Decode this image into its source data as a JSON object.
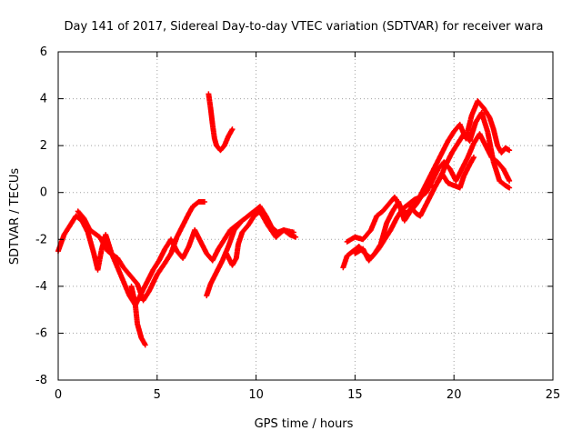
{
  "chart_data": {
    "type": "scatter",
    "title": "Day 141 of 2017, Sidereal Day-to-day VTEC variation (SDTVAR) for receiver wara",
    "xlabel": "GPS time / hours",
    "ylabel": "SDTVAR / TECUs",
    "xlim": [
      0,
      25
    ],
    "ylim": [
      -8,
      6
    ],
    "xticks": [
      0,
      5,
      10,
      15,
      20,
      25
    ],
    "yticks": [
      -8,
      -6,
      -4,
      -2,
      0,
      2,
      4,
      6
    ],
    "grid": true,
    "marker": "plus",
    "colors": {
      "series": "#ff0000",
      "grid": "#a0a0a0",
      "axis": "#000000"
    },
    "series": [
      {
        "name": "",
        "segments": [
          [
            [
              0,
              -2.5
            ],
            [
              0.3,
              -1.8
            ],
            [
              0.6,
              -1.4
            ],
            [
              0.9,
              -1.0
            ],
            [
              1.2,
              -1.2
            ],
            [
              1.5,
              -1.7
            ],
            [
              1.8,
              -2.6
            ],
            [
              2.0,
              -3.3
            ],
            [
              2.2,
              -2.4
            ],
            [
              2.4,
              -1.8
            ],
            [
              2.7,
              -2.6
            ],
            [
              3.0,
              -3.2
            ],
            [
              3.3,
              -3.8
            ],
            [
              3.6,
              -4.4
            ],
            [
              3.9,
              -4.8
            ],
            [
              4.2,
              -4.3
            ],
            [
              4.5,
              -3.8
            ],
            [
              4.8,
              -3.3
            ],
            [
              5.1,
              -2.9
            ],
            [
              5.4,
              -2.4
            ],
            [
              5.7,
              -2.0
            ],
            [
              6.0,
              -2.5
            ],
            [
              6.3,
              -2.8
            ],
            [
              6.6,
              -2.3
            ],
            [
              6.9,
              -1.6
            ],
            [
              7.2,
              -2.1
            ],
            [
              7.5,
              -2.6
            ],
            [
              7.8,
              -2.9
            ],
            [
              8.1,
              -2.4
            ],
            [
              8.4,
              -2.0
            ],
            [
              8.7,
              -1.6
            ],
            [
              9.0,
              -1.4
            ],
            [
              9.3,
              -1.2
            ],
            [
              9.6,
              -1.0
            ],
            [
              9.9,
              -0.8
            ],
            [
              10.2,
              -0.6
            ],
            [
              10.5,
              -1.0
            ],
            [
              10.8,
              -1.5
            ],
            [
              11.1,
              -1.7
            ],
            [
              11.4,
              -1.6
            ],
            [
              11.7,
              -1.8
            ],
            [
              12.0,
              -1.9
            ]
          ],
          [
            [
              1.0,
              -0.8
            ],
            [
              1.3,
              -1.1
            ],
            [
              1.6,
              -1.6
            ],
            [
              2.1,
              -1.9
            ],
            [
              2.5,
              -2.5
            ],
            [
              3.0,
              -2.8
            ],
            [
              3.3,
              -3.2
            ],
            [
              3.6,
              -3.5
            ],
            [
              4.0,
              -3.9
            ],
            [
              4.3,
              -4.6
            ],
            [
              4.6,
              -4.2
            ],
            [
              5.0,
              -3.5
            ],
            [
              5.4,
              -3.0
            ],
            [
              5.7,
              -2.6
            ],
            [
              6.0,
              -1.9
            ],
            [
              6.3,
              -1.4
            ],
            [
              6.6,
              -0.9
            ],
            [
              6.8,
              -0.6
            ],
            [
              7.1,
              -0.4
            ],
            [
              7.4,
              -0.4
            ]
          ],
          [
            [
              3.7,
              -4.0
            ],
            [
              3.9,
              -4.8
            ],
            [
              4.0,
              -5.6
            ],
            [
              4.2,
              -6.2
            ],
            [
              4.4,
              -6.5
            ]
          ],
          [
            [
              7.5,
              -4.4
            ],
            [
              7.7,
              -3.9
            ],
            [
              8.0,
              -3.4
            ],
            [
              8.3,
              -2.9
            ],
            [
              8.6,
              -2.3
            ],
            [
              8.9,
              -1.6
            ],
            [
              9.2,
              -1.3
            ]
          ],
          [
            [
              8.5,
              -2.6
            ],
            [
              8.8,
              -3.1
            ],
            [
              9.0,
              -2.8
            ],
            [
              9.1,
              -2.2
            ],
            [
              9.3,
              -1.7
            ],
            [
              9.6,
              -1.4
            ],
            [
              9.9,
              -1.0
            ],
            [
              10.2,
              -0.8
            ],
            [
              10.6,
              -1.4
            ],
            [
              11.0,
              -1.9
            ],
            [
              11.4,
              -1.6
            ],
            [
              11.9,
              -1.7
            ]
          ],
          [
            [
              7.6,
              4.2
            ],
            [
              7.7,
              3.6
            ],
            [
              7.8,
              2.9
            ],
            [
              7.9,
              2.3
            ],
            [
              8.0,
              2.0
            ],
            [
              8.2,
              1.8
            ],
            [
              8.4,
              2.0
            ],
            [
              8.6,
              2.4
            ],
            [
              8.8,
              2.7
            ]
          ],
          [
            [
              14.4,
              -3.2
            ],
            [
              14.6,
              -2.7
            ],
            [
              14.9,
              -2.5
            ],
            [
              15.2,
              -2.3
            ],
            [
              15.5,
              -2.6
            ],
            [
              15.8,
              -2.8
            ],
            [
              16.2,
              -2.4
            ],
            [
              16.5,
              -2.0
            ],
            [
              16.8,
              -1.6
            ],
            [
              17.1,
              -1.1
            ],
            [
              17.4,
              -0.7
            ],
            [
              17.7,
              -0.5
            ],
            [
              18.0,
              -0.3
            ],
            [
              18.3,
              -0.2
            ],
            [
              18.6,
              0.0
            ],
            [
              18.9,
              0.5
            ],
            [
              19.2,
              1.0
            ],
            [
              19.5,
              1.3
            ],
            [
              19.8,
              1.0
            ],
            [
              20.1,
              0.5
            ],
            [
              20.4,
              1.0
            ],
            [
              20.7,
              1.5
            ],
            [
              21.0,
              2.1
            ],
            [
              21.3,
              2.5
            ],
            [
              21.6,
              2.0
            ],
            [
              21.9,
              1.5
            ],
            [
              22.2,
              1.3
            ],
            [
              22.5,
              1.0
            ],
            [
              22.8,
              0.5
            ]
          ],
          [
            [
              14.6,
              -2.1
            ],
            [
              15.0,
              -1.9
            ],
            [
              15.4,
              -2.0
            ],
            [
              15.8,
              -1.6
            ],
            [
              16.1,
              -1.0
            ],
            [
              16.4,
              -0.8
            ],
            [
              16.7,
              -0.5
            ],
            [
              17.0,
              -0.2
            ],
            [
              17.3,
              -0.6
            ],
            [
              17.6,
              -0.9
            ],
            [
              17.9,
              -0.6
            ],
            [
              18.2,
              -0.3
            ],
            [
              18.5,
              0.2
            ],
            [
              18.8,
              0.7
            ],
            [
              19.1,
              1.2
            ],
            [
              19.4,
              1.7
            ],
            [
              19.7,
              2.2
            ],
            [
              20.0,
              2.6
            ],
            [
              20.3,
              2.9
            ],
            [
              20.6,
              2.3
            ],
            [
              20.9,
              3.3
            ],
            [
              21.2,
              3.9
            ],
            [
              21.5,
              3.6
            ],
            [
              21.8,
              3.2
            ],
            [
              22.0,
              2.7
            ],
            [
              22.2,
              2.0
            ],
            [
              22.4,
              1.7
            ],
            [
              22.6,
              1.9
            ],
            [
              22.8,
              1.8
            ]
          ],
          [
            [
              15.0,
              -2.6
            ],
            [
              15.4,
              -2.4
            ],
            [
              15.7,
              -2.9
            ],
            [
              16.0,
              -2.6
            ],
            [
              16.3,
              -2.2
            ],
            [
              16.6,
              -1.3
            ],
            [
              16.9,
              -0.8
            ],
            [
              17.2,
              -0.4
            ],
            [
              17.5,
              -1.2
            ],
            [
              17.8,
              -0.8
            ],
            [
              18.1,
              -0.5
            ],
            [
              18.4,
              -0.1
            ],
            [
              18.7,
              0.4
            ],
            [
              19.0,
              0.2
            ],
            [
              19.3,
              0.6
            ],
            [
              19.6,
              1.2
            ],
            [
              19.9,
              1.7
            ],
            [
              20.2,
              2.1
            ],
            [
              20.5,
              2.5
            ],
            [
              20.8,
              2.2
            ],
            [
              21.1,
              3.0
            ],
            [
              21.4,
              3.4
            ],
            [
              21.7,
              2.6
            ],
            [
              22.0,
              1.3
            ],
            [
              22.3,
              0.5
            ],
            [
              22.6,
              0.3
            ],
            [
              22.8,
              0.2
            ]
          ],
          [
            [
              17.8,
              -0.6
            ],
            [
              18.1,
              -0.9
            ],
            [
              18.3,
              -1.0
            ],
            [
              18.6,
              -0.5
            ],
            [
              18.9,
              0.0
            ],
            [
              19.2,
              0.5
            ],
            [
              19.4,
              0.8
            ],
            [
              19.7,
              0.4
            ],
            [
              20.0,
              0.3
            ],
            [
              20.3,
              0.2
            ],
            [
              20.5,
              0.7
            ],
            [
              20.8,
              1.2
            ],
            [
              21.0,
              1.5
            ]
          ]
        ]
      }
    ]
  }
}
